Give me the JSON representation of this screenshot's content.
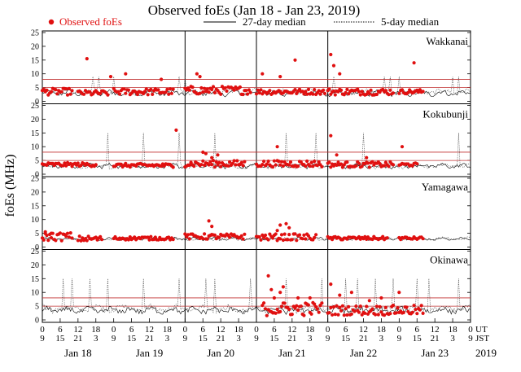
{
  "chart_data": {
    "type": "scatter",
    "title": "Observed foEs (Jan 18 - Jan 23, 2019)",
    "ylabel": "foEs (MHz)",
    "ylim": [
      0,
      25
    ],
    "yticks": [
      0,
      5,
      10,
      15,
      20,
      25
    ],
    "xlim": [
      0,
      144
    ],
    "grid": false,
    "legend": {
      "placement": "top",
      "items": [
        {
          "label": "Observed foEs",
          "style": "red-dot"
        },
        {
          "label": "27-day median",
          "style": "solid-line"
        },
        {
          "label": "5-day median",
          "style": "dotted-line"
        }
      ]
    },
    "colors": {
      "observed": "#e01010",
      "median27": "#000000",
      "median5": "#444444",
      "threshold": "#c03030"
    },
    "x_axis": {
      "ut_label": "UT",
      "jst_label": "JST",
      "ut_ticks": [
        0,
        6,
        12,
        18,
        0,
        6,
        12,
        18,
        0,
        6,
        12,
        18,
        0,
        6,
        12,
        18,
        0,
        6,
        12,
        18,
        0,
        6,
        12,
        18,
        0
      ],
      "jst_ticks": [
        9,
        15,
        21,
        3,
        9,
        15,
        21,
        3,
        9,
        15,
        21,
        3,
        9,
        15,
        21,
        3,
        9,
        15,
        21,
        3,
        9,
        15,
        21,
        3,
        9
      ],
      "day_labels": [
        "Jan 18",
        "Jan 19",
        "Jan 20",
        "Jan 21",
        "Jan 22",
        "Jan 23"
      ],
      "year_label": "2019",
      "day_separators_hours": [
        48,
        72,
        96
      ]
    },
    "series_names": [
      "Observed foEs",
      "27-day median",
      "5-day median"
    ],
    "panels": [
      {
        "station": "Wakkanai",
        "thresholds": [
          5,
          8
        ],
        "median27": {
          "base": 3.0,
          "amp": 1.6
        },
        "median5": {
          "base": 3.5,
          "amp": 1.5,
          "spike_hours": [
            17,
            19,
            24,
            46,
            48,
            98,
            115,
            117,
            120,
            138,
            140
          ],
          "spike_value": 9
        },
        "observed_segments": [
          [
            0,
            10,
            3.5,
            1.2
          ],
          [
            12,
            22,
            3.0,
            1.0
          ],
          [
            24,
            44,
            3.5,
            1.2
          ],
          [
            48,
            70,
            4.0,
            1.5
          ],
          [
            72,
            95,
            3.5,
            1.0
          ],
          [
            96,
            118,
            3.5,
            1.2
          ],
          [
            120,
            128,
            3.5,
            0.8
          ]
        ],
        "observed_outliers": [
          [
            15,
            15.5
          ],
          [
            23,
            9
          ],
          [
            28,
            10
          ],
          [
            40,
            8
          ],
          [
            52,
            10
          ],
          [
            53,
            9
          ],
          [
            74,
            10
          ],
          [
            80,
            9
          ],
          [
            85,
            15
          ],
          [
            97,
            17
          ],
          [
            98,
            13
          ],
          [
            100,
            10
          ],
          [
            125,
            14
          ]
        ]
      },
      {
        "station": "Kokubunji",
        "thresholds": [
          5,
          8
        ],
        "median27": {
          "base": 3.0,
          "amp": 1.3
        },
        "median5": {
          "base": 3.0,
          "amp": 1.3,
          "spike_hours": [
            22,
            34,
            46,
            58,
            82,
            92,
            108,
            140
          ],
          "spike_value": 15
        },
        "observed_segments": [
          [
            0,
            18,
            3.5,
            0.7
          ],
          [
            24,
            44,
            3.2,
            0.7
          ],
          [
            48,
            68,
            3.8,
            1.2
          ],
          [
            72,
            94,
            3.8,
            1.2
          ],
          [
            96,
            118,
            3.5,
            1.0
          ],
          [
            120,
            126,
            3.5,
            0.6
          ]
        ],
        "observed_outliers": [
          [
            45,
            16
          ],
          [
            54,
            8
          ],
          [
            55,
            7.5
          ],
          [
            57,
            6
          ],
          [
            59,
            7
          ],
          [
            79,
            10
          ],
          [
            97,
            14
          ],
          [
            99,
            7
          ],
          [
            109,
            6
          ],
          [
            121,
            10
          ]
        ]
      },
      {
        "station": "Yamagawa",
        "thresholds": [],
        "median27": {
          "base": 3.0,
          "amp": 0.8
        },
        "median5": {
          "base": 3.0,
          "amp": 0.9,
          "spike_hours": [],
          "spike_value": 0
        },
        "observed_segments": [
          [
            0,
            10,
            3.8,
            1.5
          ],
          [
            12,
            20,
            3.0,
            1.0
          ],
          [
            24,
            44,
            3.2,
            0.6
          ],
          [
            48,
            68,
            3.8,
            1.0
          ],
          [
            72,
            92,
            3.6,
            1.2
          ],
          [
            96,
            116,
            3.2,
            0.6
          ],
          [
            120,
            128,
            3.2,
            0.5
          ]
        ],
        "observed_outliers": [
          [
            1,
            5.5
          ],
          [
            3,
            5
          ],
          [
            56,
            9.5
          ],
          [
            57,
            7.5
          ],
          [
            80,
            8
          ],
          [
            82,
            8.5
          ],
          [
            83,
            7
          ],
          [
            79,
            6
          ]
        ]
      },
      {
        "station": "Okinawa",
        "thresholds": [
          5,
          8
        ],
        "median27": {
          "base": 3.5,
          "amp": 1.8
        },
        "median5": {
          "base": 4.0,
          "amp": 2.0,
          "spike_hours": [
            7,
            10,
            16,
            22,
            34,
            46,
            55,
            58,
            70,
            82,
            94,
            102,
            106,
            112,
            118,
            126,
            130,
            140
          ],
          "spike_value": 15
        },
        "observed_segments": [
          [
            74,
            94,
            4.0,
            2.5
          ],
          [
            96,
            128,
            3.5,
            1.8
          ]
        ],
        "observed_outliers": [
          [
            76,
            16
          ],
          [
            77,
            11
          ],
          [
            78,
            8
          ],
          [
            80,
            10
          ],
          [
            81,
            12
          ],
          [
            86,
            8
          ],
          [
            90,
            8
          ],
          [
            97,
            13
          ],
          [
            100,
            9
          ],
          [
            104,
            10
          ],
          [
            110,
            7
          ],
          [
            114,
            8
          ],
          [
            120,
            10
          ]
        ]
      }
    ]
  }
}
